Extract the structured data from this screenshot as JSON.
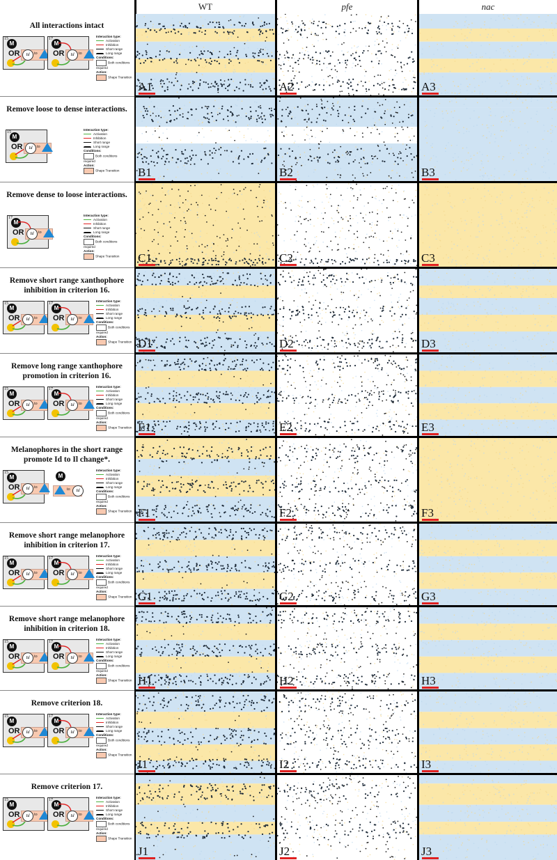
{
  "columns": [
    {
      "label": "WT",
      "italic": false
    },
    {
      "label": "pfe",
      "italic": true
    },
    {
      "label": "nac",
      "italic": true
    }
  ],
  "legend": {
    "interaction_header": "Interaction type:",
    "activation": "Activation",
    "inhibition": "Inhibition",
    "short_range": "Short range",
    "long_range": "Long range",
    "conditions_header": "Conditions:",
    "both_conditions": "Both conditions required",
    "action_header": "Action:",
    "shape_transition": "Shape Transition"
  },
  "diagram_text": {
    "or": "OR",
    "to": "to",
    "melanophore": "M",
    "xanthophore": "X",
    "id_state": "Id",
    "criterion_15": "15",
    "criterion_16": "16",
    "criterion_17": "17",
    "criterion_18": "18"
  },
  "colors": {
    "melanophore": "#1a1a1a",
    "xanthophore_dense": "#fbe7a8",
    "iridophore_dense": "#cfe3f3",
    "activation": "#4caf3f",
    "inhibition": "#e02020",
    "transition_box": "#f8c9b0",
    "triangle": "#1f88d4",
    "scale_bar": "#e02020"
  },
  "rows": [
    {
      "title": "All interactions intact",
      "labels": [
        "A1",
        "A2",
        "A3"
      ],
      "diagram": "two-box"
    },
    {
      "title": "Remove loose to dense interactions.",
      "labels": [
        "B1",
        "B2",
        "B3"
      ],
      "diagram": "single-box"
    },
    {
      "title": "Remove dense to loose interactions.",
      "labels": [
        "C1",
        "C2",
        "C3"
      ],
      "diagram": "stacked-box"
    },
    {
      "title": "Remove short range xanthophore inhibition in criterion 16.",
      "labels": [
        "D1",
        "D2",
        "D3"
      ],
      "diagram": "two-box"
    },
    {
      "title": "Remove long range xanthophore promotion in criterion 16.",
      "labels": [
        "E1",
        "E2",
        "E3"
      ],
      "diagram": "two-box"
    },
    {
      "title": "Melanophores in the short range promote Id to Il change*.",
      "labels": [
        "F1",
        "F2",
        "F3"
      ],
      "diagram": "melano-promote"
    },
    {
      "title": "Remove short range melanophore inhibition in criterion 17.",
      "labels": [
        "G1",
        "G2",
        "G3"
      ],
      "diagram": "two-box"
    },
    {
      "title": "Remove short range melanophore inhibition in criterion 18.",
      "labels": [
        "H1",
        "H2",
        "H3"
      ],
      "diagram": "two-box"
    },
    {
      "title": "Remove criterion 18.",
      "labels": [
        "I1",
        "I2",
        "I3"
      ],
      "diagram": "two-box"
    },
    {
      "title": "Remove criterion 17.",
      "labels": [
        "J1",
        "J2",
        "J3"
      ],
      "diagram": "two-box"
    }
  ]
}
